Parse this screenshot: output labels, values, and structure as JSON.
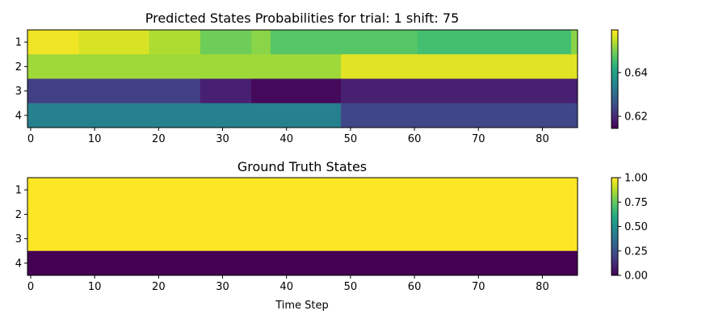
{
  "chart_data": [
    {
      "type": "heatmap",
      "title": "Predicted States Probabilities for trial: 1 shift: 75",
      "xlabel": "",
      "ylabel": "",
      "rows": [
        "1",
        "2",
        "3",
        "4"
      ],
      "n_steps": 86,
      "xlim": [
        -0.5,
        85.5
      ],
      "x_ticks": [
        0,
        10,
        20,
        30,
        40,
        50,
        60,
        70,
        80
      ],
      "colormap": "viridis",
      "color_range": [
        0.6145,
        0.6595
      ],
      "colorbar_ticks": [
        0.62,
        0.64
      ],
      "row_segments": [
        [
          {
            "from": 0,
            "to": 7,
            "value": 0.6585
          },
          {
            "from": 8,
            "to": 18,
            "value": 0.657
          },
          {
            "from": 19,
            "to": 26,
            "value": 0.654
          },
          {
            "from": 27,
            "to": 34,
            "value": 0.6495
          },
          {
            "from": 35,
            "to": 37,
            "value": 0.6515
          },
          {
            "from": 38,
            "to": 60,
            "value": 0.6475
          },
          {
            "from": 61,
            "to": 84,
            "value": 0.646
          },
          {
            "from": 85,
            "to": 85,
            "value": 0.6515
          }
        ],
        [
          {
            "from": 0,
            "to": 48,
            "value": 0.653
          },
          {
            "from": 49,
            "to": 85,
            "value": 0.6575
          }
        ],
        [
          {
            "from": 0,
            "to": 26,
            "value": 0.623
          },
          {
            "from": 27,
            "to": 34,
            "value": 0.6185
          },
          {
            "from": 35,
            "to": 48,
            "value": 0.6155
          },
          {
            "from": 49,
            "to": 85,
            "value": 0.6185
          }
        ],
        [
          {
            "from": 0,
            "to": 48,
            "value": 0.634
          },
          {
            "from": 49,
            "to": 85,
            "value": 0.624
          }
        ]
      ]
    },
    {
      "type": "heatmap",
      "title": "Ground Truth States",
      "xlabel": "Time Step",
      "ylabel": "",
      "rows": [
        "1",
        "2",
        "3",
        "4"
      ],
      "n_steps": 86,
      "xlim": [
        -0.5,
        85.5
      ],
      "x_ticks": [
        0,
        10,
        20,
        30,
        40,
        50,
        60,
        70,
        80
      ],
      "colormap": "viridis",
      "color_range": [
        0,
        1
      ],
      "colorbar_ticks": [
        0.0,
        0.25,
        0.5,
        0.75,
        1.0
      ],
      "colorbar_tick_labels": [
        "0.00",
        "0.25",
        "0.50",
        "0.75",
        "1.00"
      ],
      "row_segments": [
        [
          {
            "from": 0,
            "to": 85,
            "value": 1
          }
        ],
        [
          {
            "from": 0,
            "to": 85,
            "value": 1
          }
        ],
        [
          {
            "from": 0,
            "to": 85,
            "value": 1
          }
        ],
        [
          {
            "from": 0,
            "to": 85,
            "value": 0
          }
        ]
      ]
    }
  ]
}
